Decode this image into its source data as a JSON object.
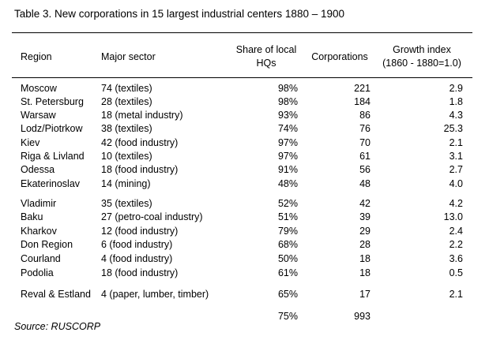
{
  "title": "Table 3.  New corporations in 15 largest industrial centers 1880 – 1900",
  "headers": {
    "region": "Region",
    "sector": "Major sector",
    "share_line1": "Share of local",
    "share_line2": "HQs",
    "corporations": "Corporations",
    "growth_line1": "Growth index",
    "growth_line2": "(1860 - 1880=1.0)"
  },
  "rows": [
    {
      "region": "Moscow",
      "sector": "74 (textiles)",
      "share": "98%",
      "corporations": "221",
      "growth": "2.9"
    },
    {
      "region": "St. Petersburg",
      "sector": "28 (textiles)",
      "share": "98%",
      "corporations": "184",
      "growth": "1.8"
    },
    {
      "region": "Warsaw",
      "sector": "18 (metal industry)",
      "share": "93%",
      "corporations": "86",
      "growth": "4.3"
    },
    {
      "region": "Lodz/Piotrkow",
      "sector": "38 (textiles)",
      "share": "74%",
      "corporations": "76",
      "growth": "25.3"
    },
    {
      "region": "Kiev",
      "sector": "42 (food industry)",
      "share": "97%",
      "corporations": "70",
      "growth": "2.1"
    },
    {
      "region": "Riga & Livland",
      "sector": "10 (textiles)",
      "share": "97%",
      "corporations": "61",
      "growth": "3.1"
    },
    {
      "region": "Odessa",
      "sector": "18 (food industry)",
      "share": "91%",
      "corporations": "56",
      "growth": "2.7"
    },
    {
      "region": "Ekaterinoslav",
      "sector": "14 (mining)",
      "share": "48%",
      "corporations": "48",
      "growth": "4.0"
    },
    {
      "region": "Vladimir",
      "sector": "35 (textiles)",
      "share": "52%",
      "corporations": "42",
      "growth": "4.2"
    },
    {
      "region": "Baku",
      "sector": "27 (petro-coal industry)",
      "share": "51%",
      "corporations": "39",
      "growth": "13.0"
    },
    {
      "region": "Kharkov",
      "sector": "12 (food industry)",
      "share": "79%",
      "corporations": "29",
      "growth": "2.4"
    },
    {
      "region": "Don Region",
      "sector": "6 (food industry)",
      "share": "68%",
      "corporations": "28",
      "growth": "2.2"
    },
    {
      "region": "Courland",
      "sector": "4 (food industry)",
      "share": "50%",
      "corporations": "18",
      "growth": "3.6"
    },
    {
      "region": "Podolia",
      "sector": "18 (food industry)",
      "share": "61%",
      "corporations": "18",
      "growth": "0.5"
    },
    {
      "region": "Reval & Estland",
      "sector": "4 (paper, lumber, timber)",
      "share": "65%",
      "corporations": "17",
      "growth": "2.1"
    }
  ],
  "totals": {
    "share": "75%",
    "corporations": "993"
  },
  "source": "Source: RUSCORP"
}
